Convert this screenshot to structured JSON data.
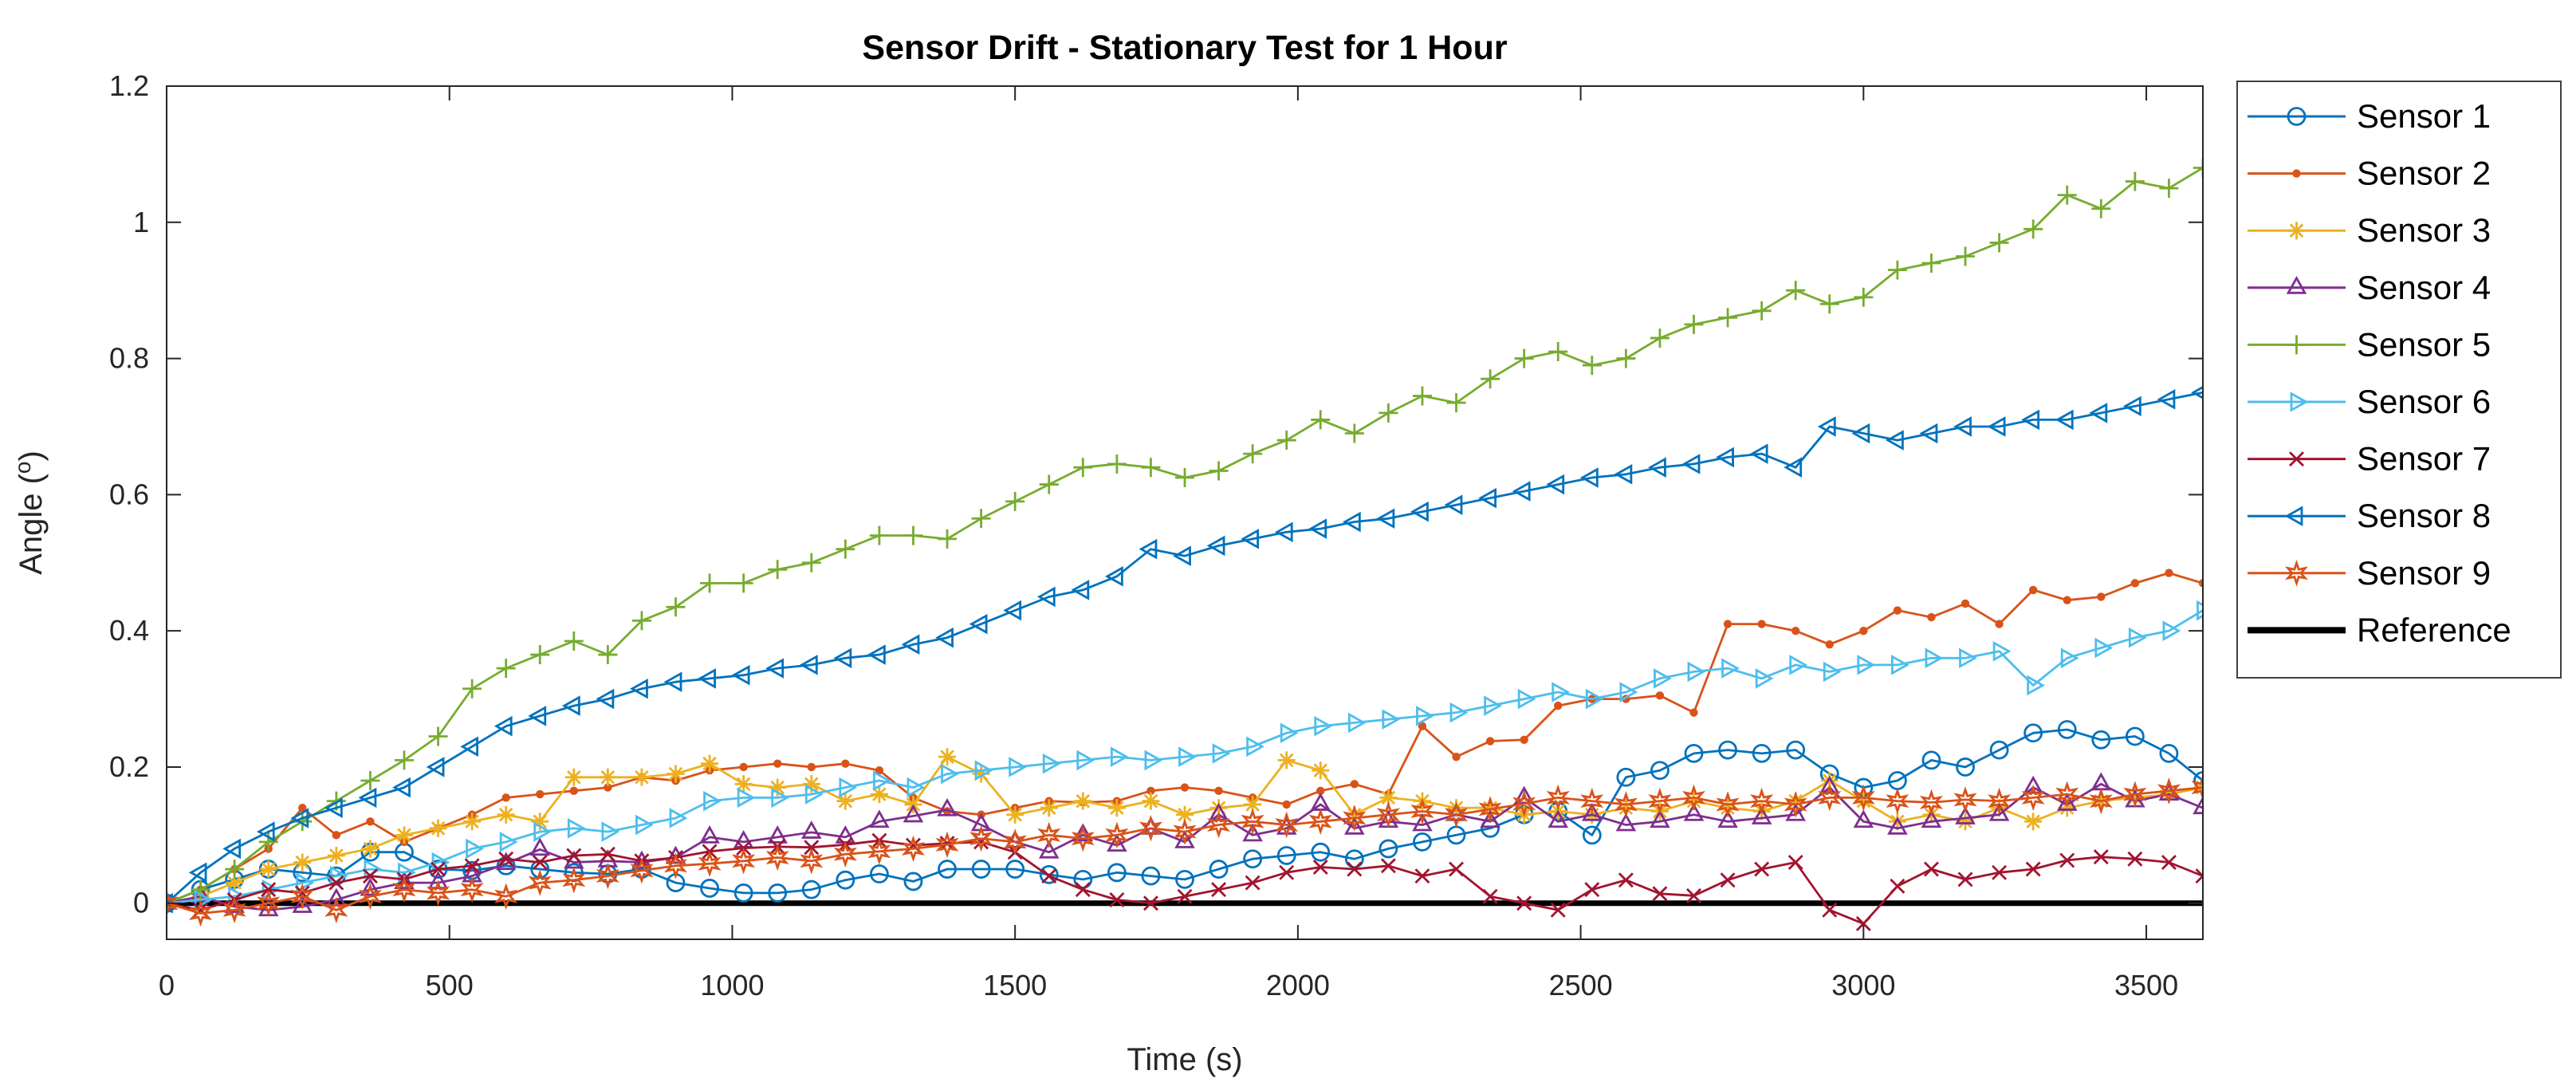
{
  "figure": {
    "background": "#ffffff",
    "axis_color": "#262626",
    "title_color": "#000000"
  },
  "chart_data": {
    "type": "line",
    "title": "Sensor Drift - Stationary Test for 1 Hour",
    "xlabel": "Time (s)",
    "ylabel_prefix": "Angle (",
    "ylabel_sup": "o",
    "ylabel_suffix": ")",
    "xlim": [
      0,
      3600
    ],
    "ylim": [
      -0.053,
      1.2
    ],
    "x_step_seconds": 60,
    "xticks": [
      0,
      500,
      1000,
      1500,
      2000,
      2500,
      3000,
      3500
    ],
    "xtick_labels": [
      "0",
      "500",
      "1000",
      "1500",
      "2000",
      "2500",
      "3000",
      "3500"
    ],
    "yticks": [
      0,
      0.2,
      0.4,
      0.6,
      0.8,
      1,
      1.2
    ],
    "ytick_labels": [
      "0",
      "0.2",
      "0.4",
      "0.6",
      "0.8",
      "1",
      "1.2"
    ],
    "grid": false,
    "box": true,
    "legend_position": "northeast-outside",
    "series": [
      {
        "name": "Sensor 1",
        "color": "#0072BD",
        "marker": "circle",
        "filled": false,
        "values": [
          0,
          0.02,
          0.035,
          0.05,
          0.045,
          0.04,
          0.075,
          0.075,
          0.05,
          0.048,
          0.055,
          0.05,
          0.045,
          0.043,
          0.05,
          0.03,
          0.022,
          0.015,
          0.015,
          0.02,
          0.034,
          0.043,
          0.032,
          0.05,
          0.05,
          0.05,
          0.042,
          0.035,
          0.045,
          0.04,
          0.035,
          0.05,
          0.065,
          0.07,
          0.075,
          0.065,
          0.08,
          0.09,
          0.1,
          0.11,
          0.13,
          0.135,
          0.1,
          0.185,
          0.195,
          0.22,
          0.225,
          0.22,
          0.225,
          0.19,
          0.17,
          0.18,
          0.21,
          0.2,
          0.225,
          0.25,
          0.255,
          0.24,
          0.245,
          0.22,
          0.18
        ]
      },
      {
        "name": "Sensor 2",
        "color": "#D95319",
        "marker": "point",
        "filled": true,
        "values": [
          0,
          0.02,
          0.05,
          0.08,
          0.14,
          0.1,
          0.12,
          0.09,
          0.11,
          0.13,
          0.155,
          0.16,
          0.165,
          0.17,
          0.185,
          0.18,
          0.195,
          0.2,
          0.205,
          0.2,
          0.205,
          0.195,
          0.155,
          0.135,
          0.13,
          0.14,
          0.15,
          0.148,
          0.15,
          0.165,
          0.17,
          0.165,
          0.155,
          0.145,
          0.165,
          0.175,
          0.16,
          0.26,
          0.215,
          0.238,
          0.24,
          0.29,
          0.3,
          0.3,
          0.305,
          0.28,
          0.41,
          0.41,
          0.4,
          0.38,
          0.4,
          0.43,
          0.42,
          0.44,
          0.41,
          0.46,
          0.445,
          0.45,
          0.47,
          0.485,
          0.47
        ]
      },
      {
        "name": "Sensor 3",
        "color": "#EDB120",
        "marker": "asterisk",
        "filled": false,
        "values": [
          0,
          0.01,
          0.03,
          0.05,
          0.06,
          0.07,
          0.08,
          0.1,
          0.11,
          0.12,
          0.13,
          0.12,
          0.185,
          0.185,
          0.185,
          0.19,
          0.205,
          0.175,
          0.17,
          0.175,
          0.15,
          0.16,
          0.145,
          0.215,
          0.19,
          0.13,
          0.14,
          0.15,
          0.14,
          0.15,
          0.13,
          0.14,
          0.145,
          0.21,
          0.195,
          0.13,
          0.155,
          0.15,
          0.14,
          0.14,
          0.13,
          0.135,
          0.13,
          0.14,
          0.135,
          0.15,
          0.14,
          0.135,
          0.15,
          0.18,
          0.15,
          0.12,
          0.13,
          0.12,
          0.14,
          0.12,
          0.14,
          0.15,
          0.155,
          0.16,
          0.17
        ]
      },
      {
        "name": "Sensor 4",
        "color": "#7E2F8E",
        "marker": "triangle-up",
        "filled": false,
        "values": [
          0,
          0.01,
          -0.005,
          -0.01,
          -0.005,
          0.005,
          0.02,
          0.03,
          0.03,
          0.04,
          0.058,
          0.079,
          0.06,
          0.062,
          0.06,
          0.067,
          0.097,
          0.09,
          0.097,
          0.104,
          0.097,
          0.12,
          0.128,
          0.137,
          0.115,
          0.09,
          0.075,
          0.1,
          0.085,
          0.11,
          0.09,
          0.13,
          0.1,
          0.11,
          0.145,
          0.11,
          0.12,
          0.115,
          0.13,
          0.12,
          0.155,
          0.12,
          0.13,
          0.115,
          0.12,
          0.13,
          0.12,
          0.125,
          0.13,
          0.17,
          0.12,
          0.11,
          0.12,
          0.125,
          0.13,
          0.17,
          0.145,
          0.175,
          0.15,
          0.16,
          0.14
        ]
      },
      {
        "name": "Sensor 5",
        "color": "#77AC30",
        "marker": "plus",
        "filled": false,
        "values": [
          0,
          0.02,
          0.05,
          0.09,
          0.12,
          0.15,
          0.18,
          0.21,
          0.245,
          0.315,
          0.345,
          0.365,
          0.385,
          0.365,
          0.415,
          0.435,
          0.47,
          0.47,
          0.49,
          0.5,
          0.52,
          0.54,
          0.54,
          0.535,
          0.565,
          0.59,
          0.615,
          0.64,
          0.645,
          0.64,
          0.625,
          0.635,
          0.66,
          0.68,
          0.71,
          0.69,
          0.72,
          0.745,
          0.735,
          0.77,
          0.8,
          0.81,
          0.79,
          0.8,
          0.83,
          0.85,
          0.86,
          0.87,
          0.9,
          0.88,
          0.89,
          0.93,
          0.94,
          0.95,
          0.97,
          0.99,
          1.04,
          1.02,
          1.06,
          1.05,
          1.08
        ]
      },
      {
        "name": "Sensor 6",
        "color": "#4DBEEE",
        "marker": "triangle-right",
        "filled": false,
        "values": [
          0,
          0.005,
          0.01,
          0.02,
          0.03,
          0.04,
          0.05,
          0.045,
          0.06,
          0.08,
          0.09,
          0.105,
          0.11,
          0.105,
          0.115,
          0.125,
          0.15,
          0.155,
          0.155,
          0.16,
          0.17,
          0.18,
          0.17,
          0.19,
          0.195,
          0.2,
          0.205,
          0.21,
          0.215,
          0.21,
          0.215,
          0.22,
          0.23,
          0.25,
          0.26,
          0.265,
          0.27,
          0.275,
          0.28,
          0.29,
          0.3,
          0.31,
          0.3,
          0.31,
          0.33,
          0.34,
          0.345,
          0.33,
          0.35,
          0.34,
          0.35,
          0.35,
          0.36,
          0.36,
          0.37,
          0.32,
          0.36,
          0.375,
          0.39,
          0.4,
          0.43
        ]
      },
      {
        "name": "Sensor 7",
        "color": "#A2142F",
        "marker": "x",
        "filled": false,
        "values": [
          0,
          -0.01,
          0.005,
          0.02,
          0.015,
          0.03,
          0.04,
          0.035,
          0.05,
          0.055,
          0.065,
          0.06,
          0.07,
          0.072,
          0.062,
          0.067,
          0.076,
          0.081,
          0.083,
          0.082,
          0.086,
          0.092,
          0.085,
          0.088,
          0.09,
          0.075,
          0.04,
          0.02,
          0.005,
          0,
          0.01,
          0.02,
          0.03,
          0.045,
          0.053,
          0.05,
          0.055,
          0.04,
          0.05,
          0.01,
          0,
          -0.01,
          0.02,
          0.034,
          0.014,
          0.011,
          0.034,
          0.05,
          0.06,
          -0.01,
          -0.03,
          0.025,
          0.05,
          0.035,
          0.045,
          0.05,
          0.063,
          0.068,
          0.065,
          0.06,
          0.04
        ]
      },
      {
        "name": "Sensor 8",
        "color": "#0072BD",
        "marker": "triangle-left",
        "filled": false,
        "values": [
          0,
          0.045,
          0.08,
          0.105,
          0.125,
          0.14,
          0.155,
          0.17,
          0.2,
          0.23,
          0.26,
          0.275,
          0.29,
          0.3,
          0.315,
          0.325,
          0.33,
          0.335,
          0.345,
          0.35,
          0.36,
          0.365,
          0.38,
          0.39,
          0.41,
          0.43,
          0.45,
          0.46,
          0.48,
          0.52,
          0.51,
          0.525,
          0.535,
          0.545,
          0.55,
          0.56,
          0.565,
          0.575,
          0.585,
          0.595,
          0.605,
          0.615,
          0.625,
          0.63,
          0.64,
          0.645,
          0.655,
          0.66,
          0.64,
          0.7,
          0.69,
          0.68,
          0.69,
          0.7,
          0.7,
          0.71,
          0.71,
          0.72,
          0.73,
          0.74,
          0.75
        ]
      },
      {
        "name": "Sensor 9",
        "color": "#D95319",
        "marker": "hexagram",
        "filled": false,
        "values": [
          0,
          -0.015,
          -0.01,
          0,
          0.01,
          -0.01,
          0.01,
          0.02,
          0.015,
          0.02,
          0.01,
          0.03,
          0.034,
          0.04,
          0.048,
          0.055,
          0.058,
          0.062,
          0.067,
          0.062,
          0.072,
          0.076,
          0.08,
          0.086,
          0.095,
          0.09,
          0.1,
          0.095,
          0.1,
          0.11,
          0.105,
          0.115,
          0.12,
          0.115,
          0.12,
          0.125,
          0.13,
          0.135,
          0.13,
          0.138,
          0.146,
          0.155,
          0.15,
          0.145,
          0.15,
          0.155,
          0.145,
          0.15,
          0.145,
          0.155,
          0.155,
          0.15,
          0.148,
          0.152,
          0.15,
          0.155,
          0.16,
          0.15,
          0.16,
          0.165,
          0.17
        ]
      }
    ],
    "reference": {
      "name": "Reference",
      "color": "#000000",
      "value": 0,
      "linewidth": 7
    }
  }
}
